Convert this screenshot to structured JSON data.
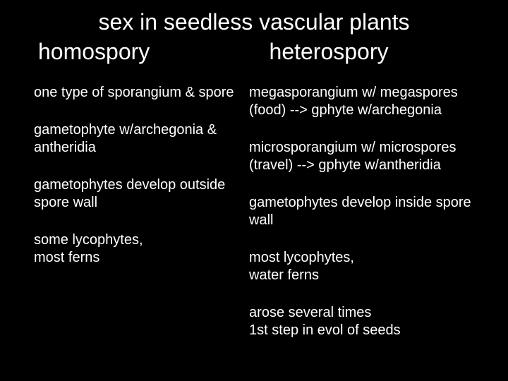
{
  "colors": {
    "background": "#000000",
    "text": "#ffffff"
  },
  "typography": {
    "family": "Comic Sans MS",
    "title_size_pt": 32,
    "body_size_pt": 20
  },
  "title": "sex in seedless vascular plants",
  "columns": {
    "left": {
      "heading": "homospory",
      "items": [
        "one type of sporangium & spore",
        "gametophyte w/archegonia & antheridia",
        "gametophytes develop outside spore wall",
        "some lycophytes,\nmost ferns"
      ]
    },
    "right": {
      "heading": "heterospory",
      "items": [
        "megasporangium w/ megaspores (food) --> gphyte w/archegonia",
        "microsporangium w/ microspores (travel) --> gphyte w/antheridia",
        "gametophytes develop inside spore wall",
        "most lycophytes,\nwater ferns",
        "arose several times\n1st step in evol of seeds"
      ]
    }
  }
}
